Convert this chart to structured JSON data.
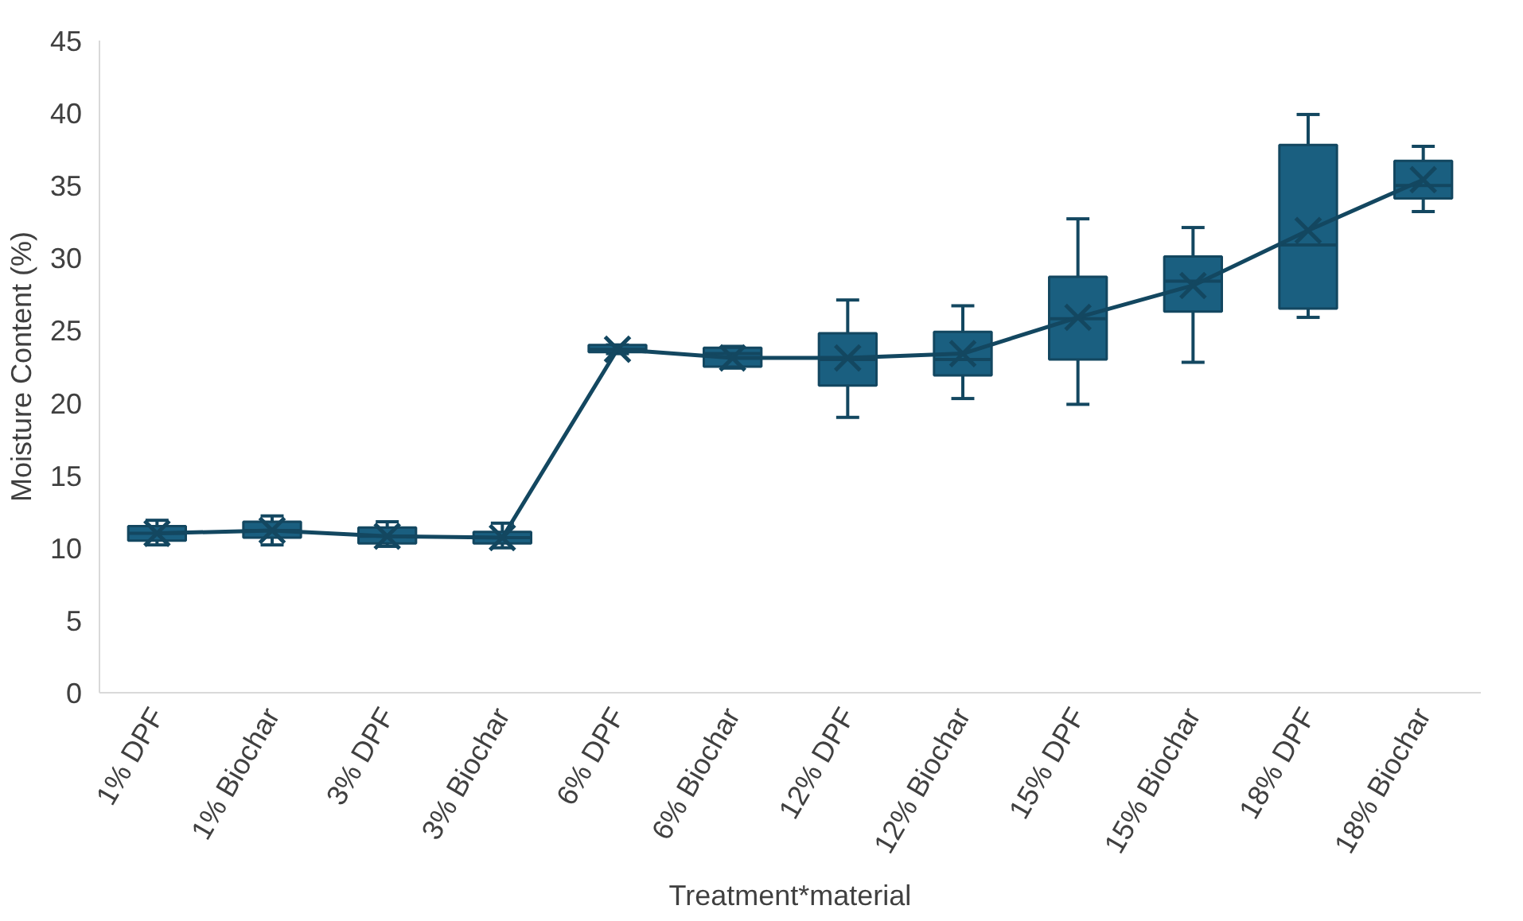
{
  "chart_data": {
    "type": "box",
    "xlabel": "Treatment*material",
    "ylabel": "Moisture Content (%)",
    "categories": [
      "1% DPF",
      "1% Biochar",
      "3% DPF",
      "3% Biochar",
      "6% DPF",
      "6% Biochar",
      "12% DPF",
      "12% Biochar",
      "15% DPF",
      "15% Biochar",
      "18% DPF",
      "18% Biochar"
    ],
    "ylim": [
      0,
      45
    ],
    "yticks": [
      0,
      5,
      10,
      15,
      20,
      25,
      30,
      35,
      40,
      45
    ],
    "grid": false,
    "marker": "cross",
    "series": [
      {
        "color": "#1a5f80",
        "boxes": [
          {
            "low": 10.2,
            "q1": 10.5,
            "median": 11.0,
            "q3": 11.5,
            "high": 11.9
          },
          {
            "low": 10.2,
            "q1": 10.7,
            "median": 11.2,
            "q3": 11.8,
            "high": 12.2
          },
          {
            "low": 10.1,
            "q1": 10.3,
            "median": 10.8,
            "q3": 11.4,
            "high": 11.8
          },
          {
            "low": 10.0,
            "q1": 10.3,
            "median": 10.7,
            "q3": 11.1,
            "high": 11.7
          },
          {
            "low": 23.4,
            "q1": 23.5,
            "median": 23.7,
            "q3": 24.0,
            "high": 24.0
          },
          {
            "low": 22.4,
            "q1": 22.5,
            "median": 23.4,
            "q3": 23.8,
            "high": 23.9
          },
          {
            "low": 19.0,
            "q1": 21.2,
            "median": 23.0,
            "q3": 24.8,
            "high": 27.1
          },
          {
            "low": 20.3,
            "q1": 21.9,
            "median": 23.0,
            "q3": 24.9,
            "high": 26.7
          },
          {
            "low": 19.9,
            "q1": 23.0,
            "median": 25.8,
            "q3": 28.7,
            "high": 32.7
          },
          {
            "low": 22.8,
            "q1": 26.3,
            "median": 28.4,
            "q3": 30.1,
            "high": 32.1
          },
          {
            "low": 25.9,
            "q1": 26.5,
            "median": 30.9,
            "q3": 37.8,
            "high": 39.9
          },
          {
            "low": 33.2,
            "q1": 34.1,
            "median": 35.0,
            "q3": 36.7,
            "high": 37.7
          }
        ]
      },
      {
        "type": "line",
        "color": "#134760",
        "values": [
          11.0,
          11.2,
          10.8,
          10.7,
          23.7,
          23.1,
          23.1,
          23.4,
          25.9,
          28.1,
          31.9,
          35.4
        ]
      }
    ]
  }
}
